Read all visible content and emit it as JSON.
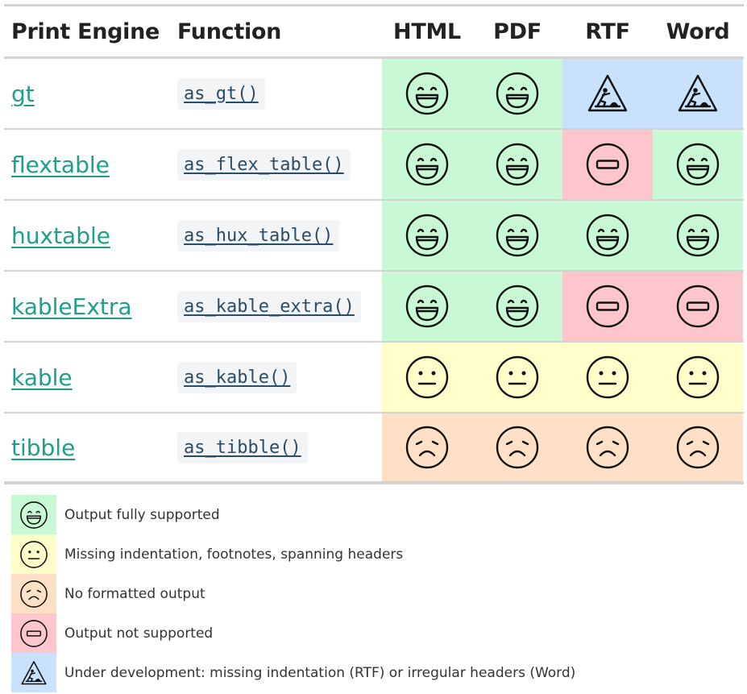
{
  "colors": {
    "green": "#c9f8d4",
    "blue": "#c9e1fb",
    "red": "#fcc6cc",
    "yellow": "#fefecb",
    "orange": "#fde0c5",
    "link": "#1f9e89"
  },
  "header": {
    "engine": "Print Engine",
    "function": "Function",
    "html": "HTML",
    "pdf": "PDF",
    "rtf": "RTF",
    "word": "Word"
  },
  "rows": [
    {
      "engine": "gt",
      "function": "as_gt()",
      "status": [
        "full",
        "full",
        "dev",
        "dev"
      ]
    },
    {
      "engine": "flextable",
      "function": "as_flex_table()",
      "status": [
        "full",
        "full",
        "not",
        "full"
      ]
    },
    {
      "engine": "huxtable",
      "function": "as_hux_table()",
      "status": [
        "full",
        "full",
        "full",
        "full"
      ]
    },
    {
      "engine": "kableExtra",
      "function": "as_kable_extra()",
      "status": [
        "full",
        "full",
        "not",
        "not"
      ]
    },
    {
      "engine": "kable",
      "function": "as_kable()",
      "status": [
        "missing",
        "missing",
        "missing",
        "missing"
      ]
    },
    {
      "engine": "tibble",
      "function": "as_tibble()",
      "status": [
        "none",
        "none",
        "none",
        "none"
      ]
    }
  ],
  "legend": [
    {
      "status": "full",
      "icon": "laughing-face-icon",
      "text": "Output fully supported"
    },
    {
      "status": "missing",
      "icon": "neutral-face-icon",
      "text": "Missing indentation, footnotes, spanning headers"
    },
    {
      "status": "none",
      "icon": "sad-face-icon",
      "text": "No formatted output"
    },
    {
      "status": "not",
      "icon": "no-entry-icon",
      "text": "Output not supported"
    },
    {
      "status": "dev",
      "icon": "construction-sign-icon",
      "text": "Under development: missing indentation (RTF) or irregular headers (Word)"
    }
  ]
}
